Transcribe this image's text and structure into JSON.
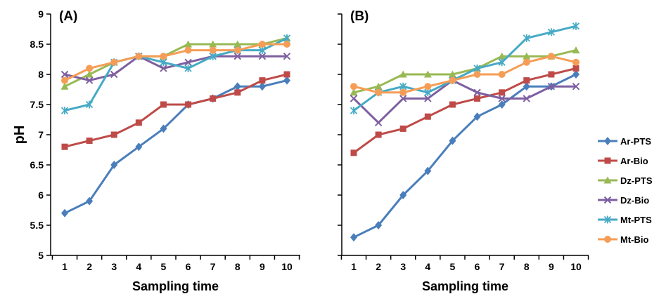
{
  "chart_data": {
    "type": "line",
    "ylabel": "pH",
    "ylim": [
      5,
      9
    ],
    "yticks": [
      "5",
      "5.5",
      "6",
      "6.5",
      "7",
      "7.5",
      "8",
      "8.5",
      "9"
    ],
    "categories": [
      "1",
      "2",
      "3",
      "4",
      "5",
      "6",
      "7",
      "8",
      "9",
      "10"
    ],
    "xlabel": "Sampling time",
    "legend_position": "right",
    "series_styles": [
      {
        "name": "Ar-PTS",
        "color": "#4a7ebb",
        "marker": "diamond"
      },
      {
        "name": "Ar-Bio",
        "color": "#be4b48",
        "marker": "square"
      },
      {
        "name": "Dz-PTS",
        "color": "#98b954",
        "marker": "triangle"
      },
      {
        "name": "Dz-Bio",
        "color": "#7d5fa0",
        "marker": "x"
      },
      {
        "name": "Mt-PTS",
        "color": "#46aac5",
        "marker": "star"
      },
      {
        "name": "Mt-Bio",
        "color": "#f59d56",
        "marker": "circle"
      }
    ],
    "panels": [
      {
        "label": "(A)",
        "series": [
          {
            "name": "Ar-PTS",
            "values": [
              5.7,
              5.9,
              6.5,
              6.8,
              7.1,
              7.5,
              7.6,
              7.8,
              7.8,
              7.9
            ]
          },
          {
            "name": "Ar-Bio",
            "values": [
              6.8,
              6.9,
              7.0,
              7.2,
              7.5,
              7.5,
              7.6,
              7.7,
              7.9,
              8.0
            ]
          },
          {
            "name": "Dz-PTS",
            "values": [
              7.8,
              8.0,
              8.2,
              8.3,
              8.3,
              8.5,
              8.5,
              8.5,
              8.5,
              8.6
            ]
          },
          {
            "name": "Dz-Bio",
            "values": [
              8.0,
              7.9,
              8.0,
              8.3,
              8.1,
              8.2,
              8.3,
              8.3,
              8.3,
              8.3
            ]
          },
          {
            "name": "Mt-PTS",
            "values": [
              7.4,
              7.5,
              8.2,
              8.3,
              8.2,
              8.1,
              8.3,
              8.4,
              8.4,
              8.6
            ]
          },
          {
            "name": "Mt-Bio",
            "values": [
              7.9,
              8.1,
              8.2,
              8.3,
              8.3,
              8.4,
              8.4,
              8.4,
              8.5,
              8.5
            ]
          }
        ]
      },
      {
        "label": "(B)",
        "series": [
          {
            "name": "Ar-PTS",
            "values": [
              5.3,
              5.5,
              6.0,
              6.4,
              6.9,
              7.3,
              7.5,
              7.8,
              7.8,
              8.0
            ]
          },
          {
            "name": "Ar-Bio",
            "values": [
              6.7,
              7.0,
              7.1,
              7.3,
              7.5,
              7.6,
              7.7,
              7.9,
              8.0,
              8.1
            ]
          },
          {
            "name": "Dz-PTS",
            "values": [
              7.7,
              7.8,
              8.0,
              8.0,
              8.0,
              8.1,
              8.3,
              8.3,
              8.3,
              8.4
            ]
          },
          {
            "name": "Dz-Bio",
            "values": [
              7.6,
              7.2,
              7.6,
              7.6,
              7.9,
              7.7,
              7.6,
              7.6,
              7.8,
              7.8
            ]
          },
          {
            "name": "Mt-PTS",
            "values": [
              7.4,
              7.7,
              7.8,
              7.7,
              7.9,
              8.1,
              8.2,
              8.6,
              8.7,
              8.8
            ]
          },
          {
            "name": "Mt-Bio",
            "values": [
              7.8,
              7.7,
              7.7,
              7.8,
              7.9,
              8.0,
              8.0,
              8.2,
              8.3,
              8.2
            ]
          }
        ]
      }
    ]
  }
}
